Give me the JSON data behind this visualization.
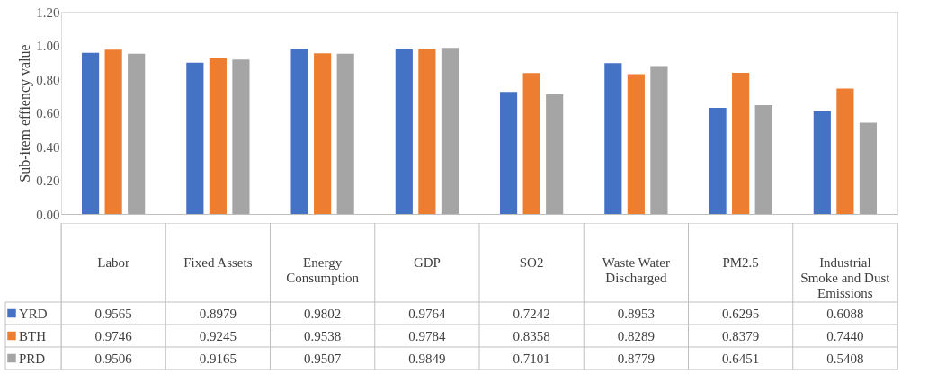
{
  "chart_data": {
    "type": "bar",
    "ylabel": "Sub-item effiency value",
    "categories": [
      "Labor",
      "Fixed Assets",
      "Energy Consumption",
      "GDP",
      "SO2",
      "Waste Water Discharged",
      "PM2.5",
      "Industrial Smoke and Dust Emissions"
    ],
    "series": [
      {
        "name": "YRD",
        "color": "#4472c4",
        "values": [
          0.9565,
          0.8979,
          0.9802,
          0.9764,
          0.7242,
          0.8953,
          0.6295,
          0.6088
        ],
        "value_labels": [
          "0.9565",
          "0.8979",
          "0.9802",
          "0.9764",
          "0.7242",
          "0.8953",
          "0.6295",
          "0.6088"
        ]
      },
      {
        "name": "BTH",
        "color": "#ed7d31",
        "values": [
          0.9746,
          0.9245,
          0.9538,
          0.9784,
          0.8358,
          0.8289,
          0.8379,
          0.744
        ],
        "value_labels": [
          "0.9746",
          "0.9245",
          "0.9538",
          "0.9784",
          "0.8358",
          "0.8289",
          "0.8379",
          "0.7440"
        ]
      },
      {
        "name": "PRD",
        "color": "#a5a5a5",
        "values": [
          0.9506,
          0.9165,
          0.9507,
          0.9849,
          0.7101,
          0.8779,
          0.6451,
          0.5408
        ],
        "value_labels": [
          "0.9506",
          "0.9165",
          "0.9507",
          "0.9849",
          "0.7101",
          "0.8779",
          "0.6451",
          "0.5408"
        ]
      }
    ],
    "ylim": [
      0,
      1.2
    ],
    "yticks": [
      {
        "value": 0,
        "label": "0.00"
      },
      {
        "value": 0.2,
        "label": "0.20"
      },
      {
        "value": 0.4,
        "label": "0.40"
      },
      {
        "value": 0.6,
        "label": "0.60"
      },
      {
        "value": 0.8,
        "label": "0.80"
      },
      {
        "value": 1.0,
        "label": "1.00"
      },
      {
        "value": 1.2,
        "label": "1.20"
      }
    ],
    "grid": false,
    "legend": "bottom"
  }
}
